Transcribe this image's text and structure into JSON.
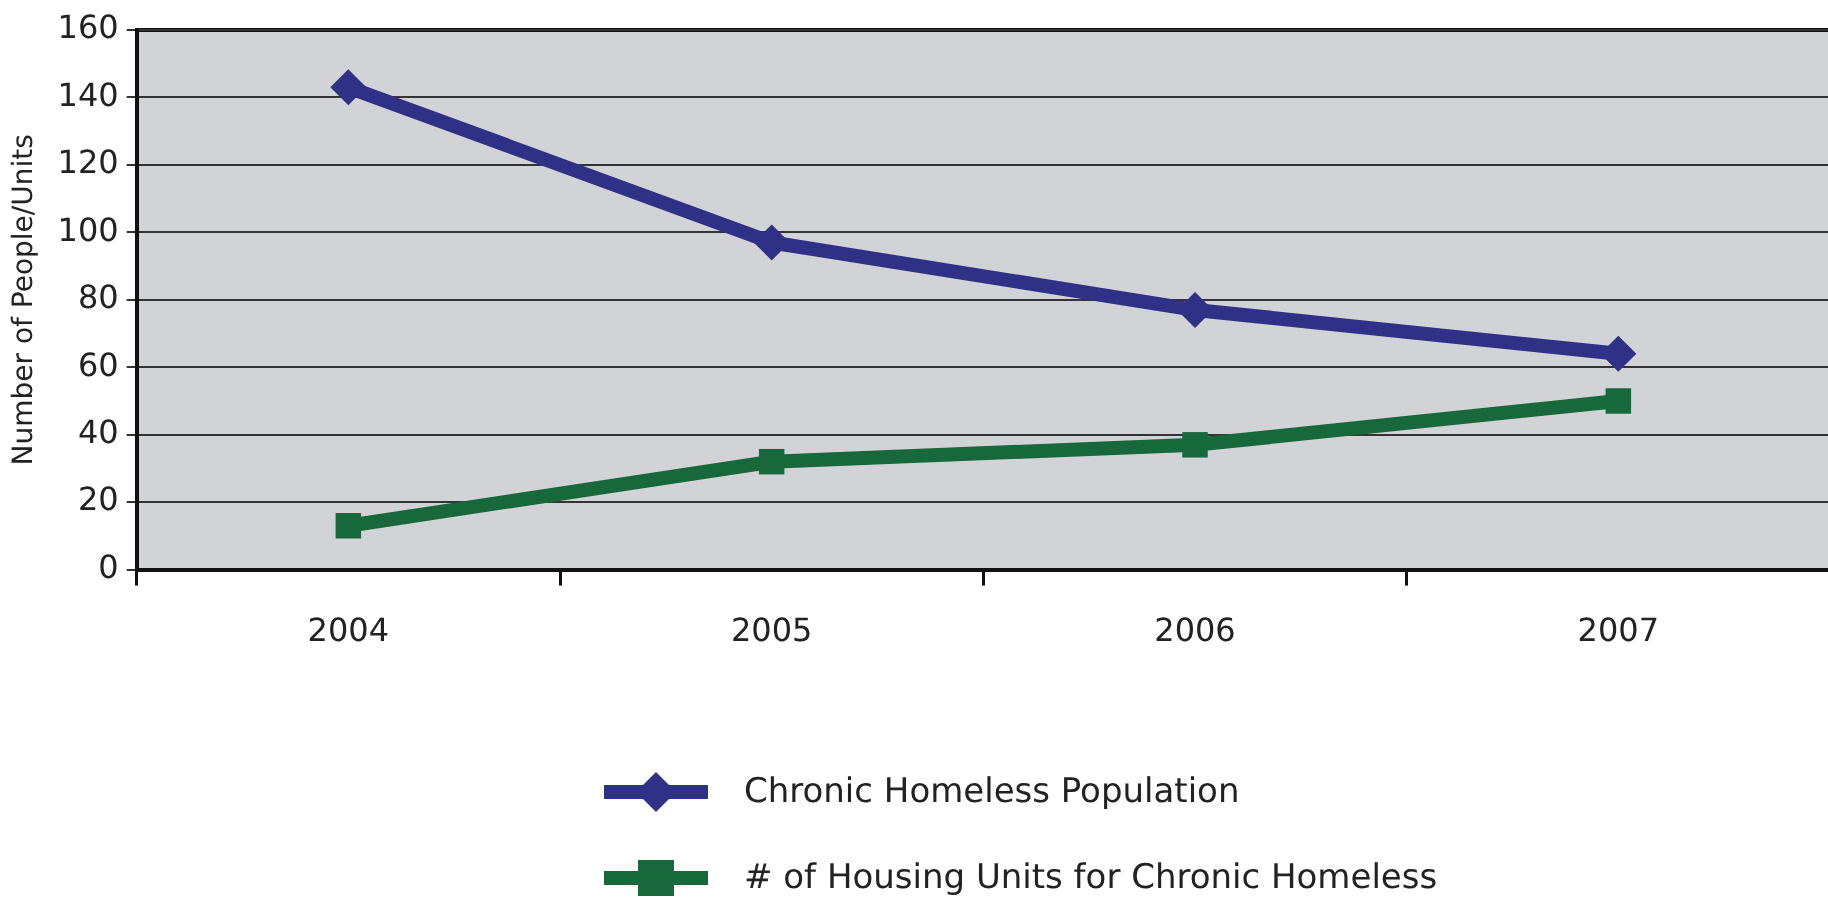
{
  "chart_data": {
    "type": "line",
    "ylabel": "Number of People/Units",
    "categories": [
      "2004",
      "2005",
      "2006",
      "2007"
    ],
    "series": [
      {
        "name": "Chronic Homeless Population",
        "color": "#2e3185",
        "values": [
          143,
          97,
          77,
          64
        ],
        "marker": "diamond"
      },
      {
        "name": "# of Housing Units for Chronic Homeless",
        "color": "#17683a",
        "values": [
          13,
          32,
          37,
          50
        ],
        "marker": "square"
      }
    ],
    "ylim": [
      0,
      160
    ],
    "yticks": [
      0,
      20,
      40,
      60,
      80,
      100,
      120,
      140,
      160
    ],
    "grid": "y",
    "legend": "bottom"
  }
}
